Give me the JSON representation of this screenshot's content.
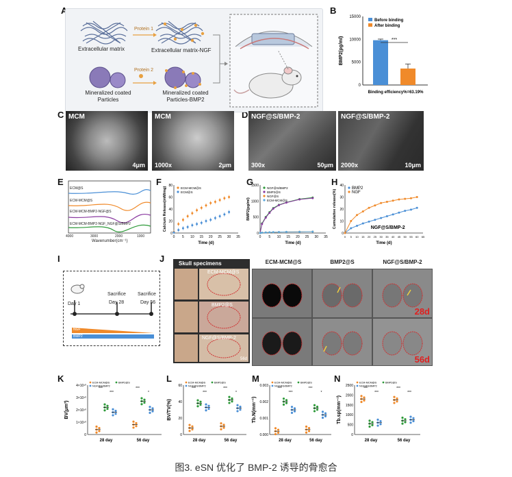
{
  "figure": {
    "caption": "图3. eSN 优化了 BMP-2 诱导的骨愈合",
    "panel_letters": [
      "A",
      "B",
      "C",
      "D",
      "E",
      "F",
      "G",
      "H",
      "I",
      "J",
      "K",
      "L",
      "M",
      "N"
    ]
  },
  "panelA": {
    "row1_left": "Extracellular matrix",
    "row1_arrow": "Protein 1",
    "row1_right": "Extracellular matrix-NGF",
    "row2_left": "Mineralized coated Particles",
    "row2_arrow": "Protein 2",
    "row2_right": "Mineralized coated Particles-BMP2"
  },
  "panelC": {
    "tags": [
      "MCM",
      "MCM"
    ],
    "bl": [
      "",
      "1000x"
    ],
    "br": [
      "4μm",
      "2μm"
    ]
  },
  "panelD": {
    "tags": [
      "NGF@S/BMP-2",
      "NGF@S/BMP-2"
    ],
    "bl": [
      "300x",
      "2000x"
    ],
    "br": [
      "50μm",
      "10μm"
    ]
  },
  "panelE": {
    "curves": [
      "ECM@S",
      "ECM-MCM@S",
      "ECM-MCM-BMP2-NGF@S",
      "ECM-MCM-BMP2-NGF_NGF@S/BMP2"
    ],
    "xlabel": "Wavenumber(cm⁻¹)",
    "ylabel": "Intensity(a.u.)",
    "ticks": [
      "4000",
      "3000",
      "2000",
      "1000"
    ]
  },
  "panelI": {
    "labels": [
      "Day 1",
      "Sacrifice",
      "Day 28",
      "Sacrifice",
      "Day 56"
    ],
    "bar1": "NGF",
    "bar2": "BMP2"
  },
  "panelJ": {
    "header_left": "Skull specimens",
    "headers": [
      "ECM-MCM@S",
      "BMP2@S",
      "NGF@S/BMP-2"
    ],
    "specimen_labels": [
      "ECM-MCM@S",
      "BMP2@S",
      "NGF@S/BMP-2"
    ],
    "time_labels": [
      "28d",
      "56d"
    ],
    "specimen_time": "56d"
  },
  "chart_data": [
    {
      "id": "B",
      "type": "bar",
      "categories": [
        "Before binding",
        "After binding"
      ],
      "values": [
        9800,
        3600
      ],
      "errors": [
        250,
        1000
      ],
      "ylabel": "BMP2(pg/ml)",
      "ylim": [
        0,
        15000
      ],
      "yticks": [
        "0",
        "5000",
        "10000",
        "15000"
      ],
      "legend": [
        "Before binding",
        "After binding"
      ],
      "significance": "***",
      "note": "Binding efficiency%=63.19%",
      "colors": [
        "#4a8fd6",
        "#f08a2a"
      ]
    },
    {
      "id": "F",
      "type": "scatter",
      "x": [
        0,
        2.5,
        5,
        7.5,
        10,
        12.5,
        15,
        17.5,
        20,
        22.5,
        25,
        27.5,
        30
      ],
      "series": [
        {
          "name": "ECM-MCM@S",
          "color": "#f08a2a",
          "values": [
            2,
            15,
            22,
            28,
            33,
            38,
            42,
            46,
            50,
            52,
            55,
            58,
            60
          ]
        },
        {
          "name": "ECM@S",
          "color": "#4a8fd6",
          "values": [
            1,
            5,
            8,
            10,
            13,
            15,
            17,
            20,
            22,
            25,
            28,
            31,
            35
          ]
        }
      ],
      "xlabel": "Time (d)",
      "ylabel": "Calcium Release(mM/mg)",
      "xlim": [
        0,
        35
      ],
      "ylim": [
        0,
        80
      ],
      "xticks": [
        "0",
        "5",
        "10",
        "15",
        "20",
        "25",
        "30",
        "35"
      ],
      "yticks": [
        "0",
        "20",
        "40",
        "60",
        "80"
      ]
    },
    {
      "id": "G",
      "type": "line",
      "x": [
        0,
        1,
        3,
        5,
        7,
        10,
        14,
        21,
        28
      ],
      "series": [
        {
          "name": "NGF@S/BMP2",
          "color": "#2e9a3a",
          "values": [
            0,
            300,
            500,
            650,
            780,
            880,
            960,
            1060,
            1110
          ]
        },
        {
          "name": "BMP2@S",
          "color": "#8a3aa0",
          "values": [
            0,
            280,
            480,
            630,
            760,
            870,
            950,
            1050,
            1090
          ]
        },
        {
          "name": "NGF@S",
          "color": "#f08a2a",
          "values": [
            0,
            10,
            15,
            20,
            25,
            30,
            35,
            40,
            45
          ]
        },
        {
          "name": "ECM-MCM@S",
          "color": "#5aa8dd",
          "values": [
            0,
            12,
            16,
            22,
            26,
            30,
            34,
            38,
            42
          ]
        }
      ],
      "xlabel": "Time (d)",
      "ylabel": "BMP2(pg/ml)",
      "xlim": [
        0,
        35
      ],
      "ylim": [
        0,
        1500
      ],
      "xticks": [
        "0",
        "5",
        "10",
        "15",
        "20",
        "25",
        "30",
        "35"
      ],
      "yticks": [
        "0",
        "500",
        "1000",
        "1500"
      ]
    },
    {
      "id": "H",
      "type": "line",
      "x": [
        0,
        5,
        10,
        15,
        20,
        25,
        30,
        35,
        40,
        45,
        50,
        55,
        60
      ],
      "series": [
        {
          "name": "BMP2",
          "color": "#4a8fd6",
          "values": [
            0,
            4,
            6,
            8,
            9.5,
            11,
            12.5,
            14,
            15.5,
            17,
            18.5,
            19.5,
            21
          ]
        },
        {
          "name": "NGF",
          "color": "#f08a2a",
          "values": [
            0,
            10,
            15,
            18,
            21,
            23,
            25,
            26,
            27,
            28,
            28.5,
            29,
            30
          ]
        }
      ],
      "title": "NGF@S/BMP-2",
      "xlabel": "Time (d)",
      "ylabel": "Cumulative release(%)",
      "xlim": [
        0,
        65
      ],
      "ylim": [
        0,
        40
      ],
      "xticks": [
        "0",
        "5",
        "10",
        "15",
        "20",
        "25",
        "30",
        "35",
        "40",
        "45",
        "50",
        "55",
        "60",
        "65"
      ],
      "yticks": [
        "0",
        "10",
        "20",
        "30",
        "40"
      ]
    },
    {
      "id": "K",
      "type": "scatter",
      "categories": [
        "28 day",
        "56 day"
      ],
      "series": [
        {
          "name": "ECM-MCM@S",
          "color": "#f08a2a",
          "values": [
            0.4,
            0.8
          ]
        },
        {
          "name": "BMP2@S",
          "color": "#2e9a3a",
          "values": [
            2.2,
            2.7
          ]
        },
        {
          "name": "NGF@S/BMP2",
          "color": "#4a8fd6",
          "values": [
            1.8,
            2.0
          ]
        }
      ],
      "ylabel": "BV(μm³)",
      "ylim": [
        0,
        4
      ],
      "yticks": [
        "0",
        "1×10¹⁰",
        "2×10¹⁰",
        "3×10¹⁰",
        "4×10¹⁰"
      ],
      "sig": [
        "***",
        "***",
        "***",
        "*"
      ]
    },
    {
      "id": "L",
      "type": "scatter",
      "categories": [
        "28 day",
        "56 day"
      ],
      "series": [
        {
          "name": "ECM-MCM@S",
          "color": "#f08a2a",
          "values": [
            8,
            10
          ]
        },
        {
          "name": "BMP2@S",
          "color": "#2e9a3a",
          "values": [
            38,
            42
          ]
        },
        {
          "name": "NGF@S/BMP2",
          "color": "#4a8fd6",
          "values": [
            33,
            32
          ]
        }
      ],
      "ylabel": "BV/TV(%)",
      "ylim": [
        0,
        60
      ],
      "yticks": [
        "0",
        "20",
        "40",
        "60"
      ],
      "sig": [
        "***",
        "***",
        "***",
        "*"
      ]
    },
    {
      "id": "M",
      "type": "scatter",
      "categories": [
        "28 day",
        "56 day"
      ],
      "series": [
        {
          "name": "ECM-MCM@S",
          "color": "#f08a2a",
          "values": [
            0.0002,
            0.0003
          ]
        },
        {
          "name": "BMP2@S",
          "color": "#2e9a3a",
          "values": [
            0.002,
            0.0016
          ]
        },
        {
          "name": "NGF@S/BMP2",
          "color": "#4a8fd6",
          "values": [
            0.0015,
            0.0012
          ]
        }
      ],
      "ylabel": "Tb.N(mm⁻¹)",
      "ylim": [
        0,
        0.003
      ],
      "yticks": [
        "0.000",
        "0.001",
        "0.002",
        "0.003"
      ],
      "sig": [
        "***",
        "***",
        "***",
        "*"
      ]
    },
    {
      "id": "N",
      "type": "scatter",
      "categories": [
        "28 day",
        "56 day"
      ],
      "series": [
        {
          "name": "ECM-MCM@S",
          "color": "#f08a2a",
          "values": [
            1800,
            1750
          ]
        },
        {
          "name": "BMP2@S",
          "color": "#2e9a3a",
          "values": [
            550,
            700
          ]
        },
        {
          "name": "NGF@S/BMP2",
          "color": "#4a8fd6",
          "values": [
            600,
            750
          ]
        }
      ],
      "ylabel": "Tb.sp(mm⁻¹)",
      "ylim": [
        0,
        2500
      ],
      "yticks": [
        "0",
        "500",
        "1000",
        "1500",
        "2000",
        "2500"
      ],
      "sig": [
        "***",
        "***",
        "***",
        "***"
      ]
    }
  ]
}
